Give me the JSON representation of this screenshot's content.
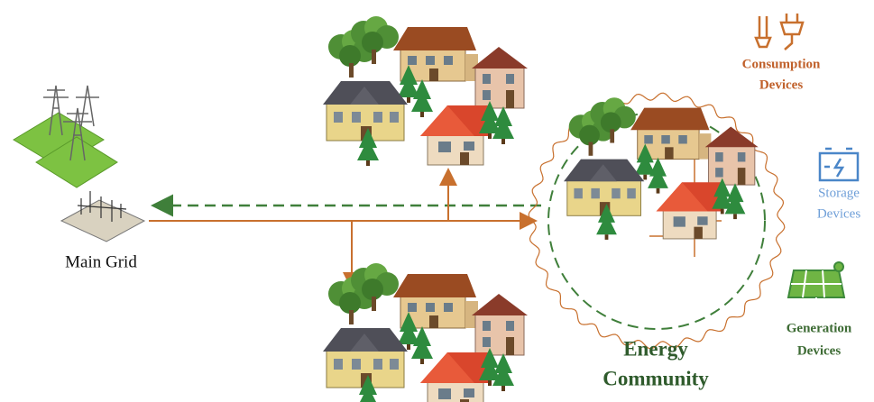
{
  "nodes": [
    {
      "label": "Main Grid"
    },
    {
      "label_lines": [
        "Energy",
        "Community"
      ]
    },
    {
      "label_lines": [
        "Consumption",
        "Devices"
      ]
    },
    {
      "label_lines": [
        "Storage",
        "Devices"
      ]
    },
    {
      "label_lines": [
        "Generation",
        "Devices"
      ]
    }
  ]
}
